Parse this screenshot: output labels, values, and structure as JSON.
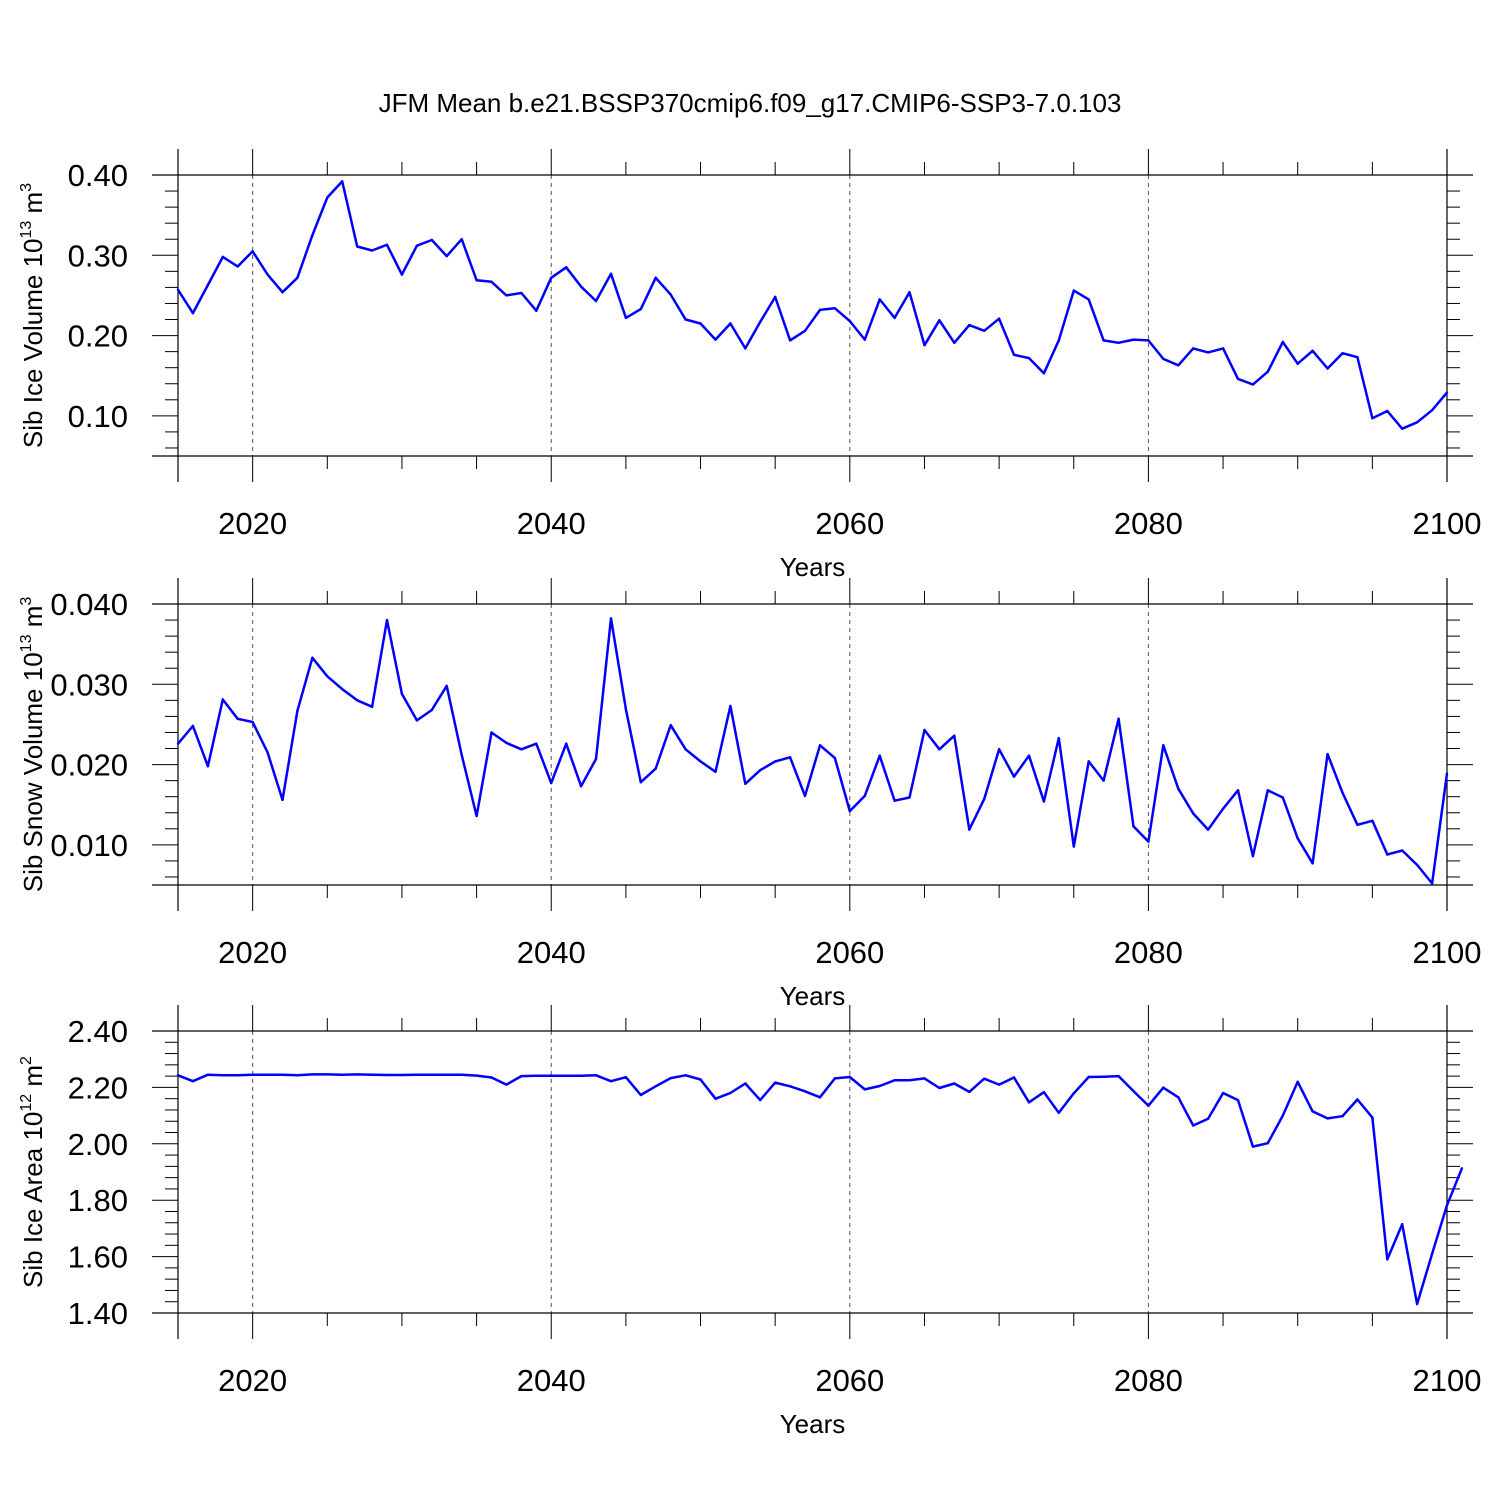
{
  "figure": {
    "title": "JFM Mean b.e21.BSSP370cmip6.f09_g17.CMIP6-SSP3-7.0.103",
    "line_color": "#0000ff"
  },
  "chart_data": [
    {
      "type": "line",
      "name": "sib-ice-volume",
      "ylabel": {
        "main": "Sib Ice Volume 10",
        "sup": "13",
        "unit": " m",
        "unit_sup": "3"
      },
      "xlabel": "Years",
      "xlim": [
        2015,
        2100
      ],
      "ylim": [
        0.05,
        0.4
      ],
      "xticks": [
        2020,
        2040,
        2060,
        2080,
        2100
      ],
      "xtick_labels": [
        "2020",
        "2040",
        "2060",
        "2080",
        "2100"
      ],
      "yticks": [
        0.1,
        0.2,
        0.3,
        0.4
      ],
      "ytick_labels": [
        "0.10",
        "0.20",
        "0.30",
        "0.40"
      ],
      "x_start": 2015,
      "values": [
        0.257,
        0.228,
        0.263,
        0.298,
        0.286,
        0.305,
        0.276,
        0.254,
        0.272,
        0.325,
        0.372,
        0.392,
        0.311,
        0.306,
        0.313,
        0.276,
        0.312,
        0.319,
        0.299,
        0.32,
        0.269,
        0.267,
        0.25,
        0.253,
        0.231,
        0.272,
        0.285,
        0.261,
        0.243,
        0.277,
        0.222,
        0.233,
        0.272,
        0.251,
        0.22,
        0.215,
        0.195,
        0.215,
        0.184,
        0.217,
        0.248,
        0.194,
        0.206,
        0.232,
        0.234,
        0.218,
        0.195,
        0.245,
        0.222,
        0.254,
        0.188,
        0.219,
        0.191,
        0.213,
        0.206,
        0.221,
        0.176,
        0.172,
        0.153,
        0.194,
        0.256,
        0.245,
        0.194,
        0.191,
        0.195,
        0.194,
        0.171,
        0.163,
        0.184,
        0.179,
        0.184,
        0.146,
        0.139,
        0.155,
        0.192,
        0.165,
        0.181,
        0.159,
        0.178,
        0.173,
        0.097,
        0.106,
        0.084,
        0.092,
        0.107,
        0.129
      ]
    },
    {
      "type": "line",
      "name": "sib-snow-volume",
      "ylabel": {
        "main": "Sib Snow Volume 10",
        "sup": "13",
        "unit": " m",
        "unit_sup": "3"
      },
      "xlabel": "Years",
      "xlim": [
        2015,
        2100
      ],
      "ylim": [
        0.005,
        0.04
      ],
      "xticks": [
        2020,
        2040,
        2060,
        2080,
        2100
      ],
      "xtick_labels": [
        "2020",
        "2040",
        "2060",
        "2080",
        "2100"
      ],
      "yticks": [
        0.01,
        0.02,
        0.03,
        0.04
      ],
      "ytick_labels": [
        "0.010",
        "0.020",
        "0.030",
        "0.040"
      ],
      "x_start": 2015,
      "values": [
        0.0226,
        0.0248,
        0.0198,
        0.0281,
        0.0257,
        0.0253,
        0.0215,
        0.0156,
        0.0267,
        0.0333,
        0.031,
        0.0294,
        0.028,
        0.0272,
        0.038,
        0.0288,
        0.0255,
        0.0268,
        0.0298,
        0.0212,
        0.0136,
        0.024,
        0.0227,
        0.0219,
        0.0226,
        0.0177,
        0.0226,
        0.0173,
        0.0207,
        0.0382,
        0.0269,
        0.0178,
        0.0195,
        0.0249,
        0.0219,
        0.0204,
        0.0191,
        0.0273,
        0.0176,
        0.0193,
        0.0204,
        0.0209,
        0.0161,
        0.0224,
        0.0208,
        0.0142,
        0.0161,
        0.0211,
        0.0155,
        0.0159,
        0.0243,
        0.0219,
        0.0236,
        0.0119,
        0.0157,
        0.0219,
        0.0185,
        0.0211,
        0.0154,
        0.0233,
        0.0098,
        0.0204,
        0.018,
        0.0257,
        0.0123,
        0.0104,
        0.0224,
        0.017,
        0.0139,
        0.0119,
        0.0145,
        0.0168,
        0.0086,
        0.0168,
        0.0159,
        0.0108,
        0.0077,
        0.0213,
        0.0165,
        0.0125,
        0.013,
        0.0088,
        0.0093,
        0.0075,
        0.0052,
        0.0189
      ]
    },
    {
      "type": "line",
      "name": "sib-ice-area",
      "ylabel": {
        "main": "Sib Ice Area 10",
        "sup": "12",
        "unit": " m",
        "unit_sup": "2"
      },
      "xlabel": "Years",
      "xlim": [
        2015,
        2100
      ],
      "ylim": [
        1.4,
        2.4
      ],
      "xticks": [
        2020,
        2040,
        2060,
        2080,
        2100
      ],
      "xtick_labels": [
        "2020",
        "2040",
        "2060",
        "2080",
        "2100"
      ],
      "yticks": [
        1.4,
        1.6,
        1.8,
        2.0,
        2.2,
        2.4
      ],
      "ytick_labels": [
        "1.40",
        "1.60",
        "1.80",
        "2.00",
        "2.20",
        "2.40"
      ],
      "x_start": 2015,
      "values": [
        2.243,
        2.222,
        2.245,
        2.243,
        2.243,
        2.245,
        2.245,
        2.245,
        2.243,
        2.246,
        2.246,
        2.245,
        2.246,
        2.245,
        2.244,
        2.244,
        2.245,
        2.245,
        2.245,
        2.245,
        2.242,
        2.235,
        2.21,
        2.24,
        2.241,
        2.241,
        2.241,
        2.241,
        2.243,
        2.222,
        2.236,
        2.173,
        2.204,
        2.233,
        2.243,
        2.228,
        2.16,
        2.18,
        2.214,
        2.155,
        2.217,
        2.204,
        2.186,
        2.165,
        2.232,
        2.237,
        2.193,
        2.205,
        2.225,
        2.225,
        2.232,
        2.198,
        2.214,
        2.184,
        2.231,
        2.21,
        2.235,
        2.147,
        2.183,
        2.11,
        2.179,
        2.237,
        2.238,
        2.24,
        2.187,
        2.135,
        2.199,
        2.165,
        2.065,
        2.089,
        2.18,
        2.155,
        1.99,
        2.002,
        2.1,
        2.22,
        2.115,
        2.09,
        2.098,
        2.157,
        2.093,
        1.59,
        1.715,
        1.432,
        1.61,
        1.782,
        1.913
      ]
    }
  ]
}
